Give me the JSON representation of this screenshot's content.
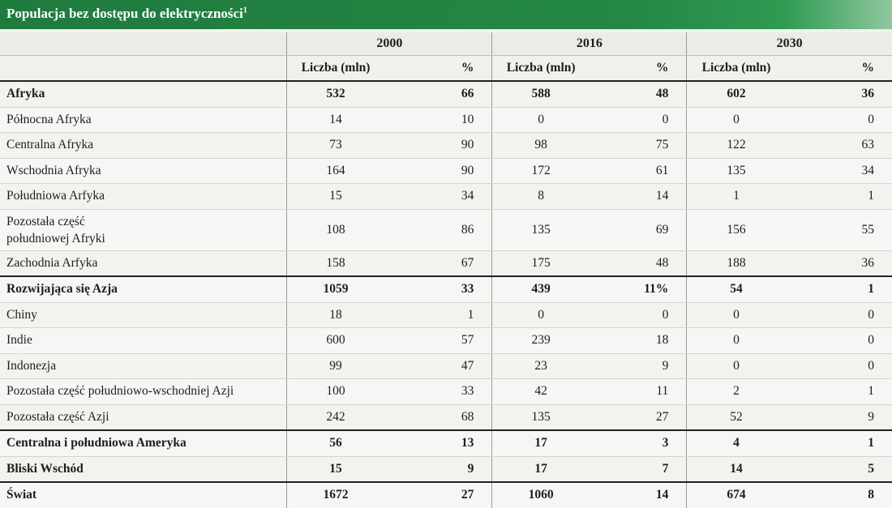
{
  "title": "Populacja bez dostępu do elektryczności",
  "title_footnote": "1",
  "years": [
    "2000",
    "2016",
    "2030"
  ],
  "units": {
    "count": "Liczba (mln)",
    "pct": "%"
  },
  "rows": [
    {
      "name": "Afryka",
      "v": [
        "532",
        "66",
        "588",
        "48",
        "602",
        "36"
      ],
      "bold": true,
      "region": true
    },
    {
      "name": "Północna Afryka",
      "v": [
        "14",
        "10",
        "0",
        "0",
        "0",
        "0"
      ]
    },
    {
      "name": "Centralna Afryka",
      "v": [
        "73",
        "90",
        "98",
        "75",
        "122",
        "63"
      ]
    },
    {
      "name": "Wschodnia Afryka",
      "v": [
        "164",
        "90",
        "172",
        "61",
        "135",
        "34"
      ]
    },
    {
      "name": "Południowa Arfyka",
      "v": [
        "15",
        "34",
        "8",
        "14",
        "1",
        "1"
      ]
    },
    {
      "name": "Pozostała część\npołudniowej Afryki",
      "v": [
        "108",
        "86",
        "135",
        "69",
        "156",
        "55"
      ],
      "tall": true
    },
    {
      "name": "Zachodnia Arfyka",
      "v": [
        "158",
        "67",
        "175",
        "48",
        "188",
        "36"
      ]
    },
    {
      "name": "Rozwijająca się Azja",
      "v": [
        "1059",
        "33",
        "439",
        "11%",
        "54",
        "1"
      ],
      "bold": true,
      "region": true
    },
    {
      "name": "Chiny",
      "v": [
        "18",
        "1",
        "0",
        "0",
        "0",
        "0"
      ]
    },
    {
      "name": "Indie",
      "v": [
        "600",
        "57",
        "239",
        "18",
        "0",
        "0"
      ]
    },
    {
      "name": "Indonezja",
      "v": [
        "99",
        "47",
        "23",
        "9",
        "0",
        "0"
      ]
    },
    {
      "name": "Pozostała część południowo-wschodniej Azji",
      "v": [
        "100",
        "33",
        "42",
        "11",
        "2",
        "1"
      ]
    },
    {
      "name": "Pozostała część Azji",
      "v": [
        "242",
        "68",
        "135",
        "27",
        "52",
        "9"
      ]
    },
    {
      "name": "Centralna i południowa Ameryka",
      "v": [
        "56",
        "13",
        "17",
        "3",
        "4",
        "1"
      ],
      "bold": true,
      "region": true
    },
    {
      "name": "Bliski Wschód",
      "v": [
        "15",
        "9",
        "17",
        "7",
        "14",
        "5"
      ],
      "bold": true
    },
    {
      "name": "Świat",
      "v": [
        "1672",
        "27",
        "1060",
        "14",
        "674",
        "8"
      ],
      "bold": true,
      "world": true
    }
  ]
}
